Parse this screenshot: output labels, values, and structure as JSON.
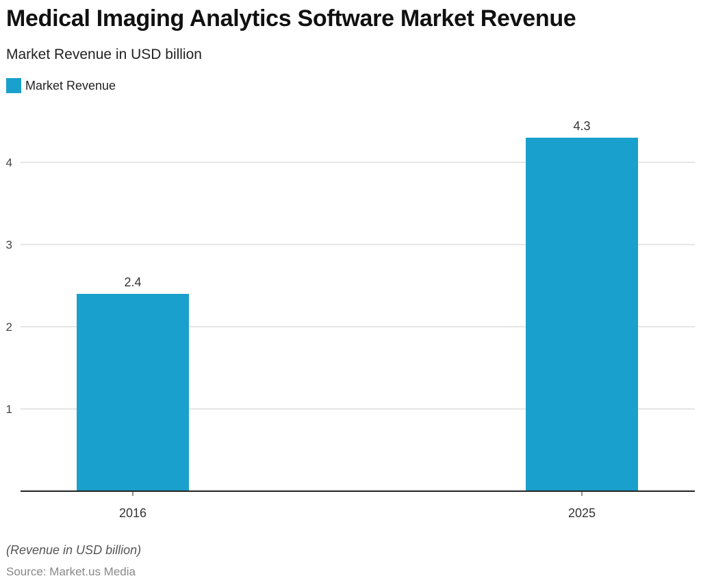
{
  "header": {
    "title": "Medical Imaging Analytics Software Market Revenue",
    "subtitle": "Market Revenue in USD billion"
  },
  "footer": {
    "note": "(Revenue in USD billion)",
    "source": "Source: Market.us Media"
  },
  "colors": {
    "bar": "#1aa0cc",
    "grid": "#cccccc",
    "axis": "#222222"
  },
  "chart_data": {
    "type": "bar",
    "title": "Medical Imaging Analytics Software Market Revenue",
    "subtitle": "Market Revenue in USD billion",
    "categories": [
      "2016",
      "2025"
    ],
    "series": [
      {
        "name": "Market Revenue",
        "values": [
          2.4,
          4.3
        ],
        "labels": [
          "2.4",
          "4.3"
        ]
      }
    ],
    "yticks": [
      1,
      2,
      3,
      4
    ],
    "ylim": [
      0,
      4.8
    ],
    "grid": true,
    "legend": "top-left"
  }
}
